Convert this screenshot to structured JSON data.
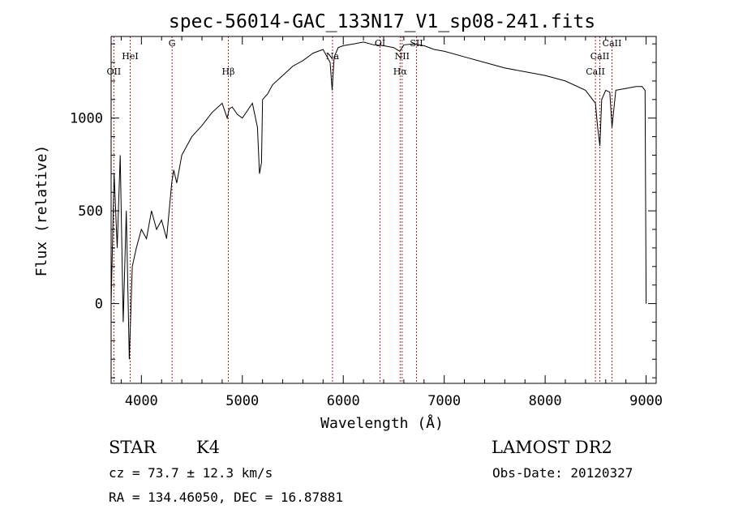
{
  "chart_data": {
    "type": "line",
    "title": "spec-56014-GAC_133N17_V1_sp08-241.fits",
    "xlabel": "Wavelength (Å)",
    "ylabel": "Flux (relative)",
    "xlim": [
      3700,
      9100
    ],
    "ylim": [
      -430,
      1440
    ],
    "x_ticks": [
      4000,
      5000,
      6000,
      7000,
      8000,
      9000
    ],
    "y_ticks": [
      0,
      500,
      1000
    ],
    "x_tick_labels": [
      "4000",
      "5000",
      "6000",
      "7000",
      "8000",
      "9000"
    ],
    "y_tick_labels": [
      "0",
      "500",
      "1000"
    ],
    "grid": false,
    "line_color": "#000000",
    "spectral_line_color": "#b22222",
    "spectrum": {
      "wavelength": [
        3700,
        3730,
        3760,
        3790,
        3820,
        3850,
        3880,
        3910,
        3950,
        4000,
        4050,
        4100,
        4150,
        4200,
        4250,
        4300,
        4320,
        4350,
        4400,
        4450,
        4500,
        4600,
        4700,
        4800,
        4850,
        4870,
        4900,
        4950,
        5000,
        5100,
        5150,
        5170,
        5190,
        5200,
        5250,
        5300,
        5400,
        5500,
        5600,
        5700,
        5800,
        5870,
        5890,
        5910,
        5950,
        6000,
        6100,
        6200,
        6300,
        6400,
        6500,
        6560,
        6600,
        6700,
        6800,
        6900,
        7000,
        7200,
        7400,
        7600,
        7800,
        8000,
        8200,
        8400,
        8498,
        8520,
        8542,
        8560,
        8600,
        8640,
        8662,
        8700,
        8800,
        8900,
        8960,
        8990,
        9000
      ],
      "flux": [
        0,
        700,
        300,
        800,
        -100,
        500,
        -300,
        200,
        300,
        400,
        350,
        500,
        400,
        450,
        350,
        650,
        720,
        650,
        800,
        850,
        900,
        960,
        1030,
        1080,
        1000,
        1050,
        1060,
        1020,
        1000,
        1080,
        950,
        700,
        760,
        1100,
        1130,
        1180,
        1230,
        1280,
        1310,
        1350,
        1370,
        1300,
        1150,
        1330,
        1380,
        1390,
        1400,
        1410,
        1395,
        1390,
        1380,
        1360,
        1395,
        1400,
        1390,
        1370,
        1360,
        1330,
        1300,
        1270,
        1250,
        1230,
        1200,
        1150,
        1080,
        950,
        850,
        1100,
        1150,
        1140,
        950,
        1150,
        1160,
        1170,
        1170,
        1150,
        0
      ]
    },
    "spectral_lines": [
      {
        "label": "OII",
        "wavelength": 3727
      },
      {
        "label": "HeI",
        "wavelength": 3889
      },
      {
        "label": "G",
        "wavelength": 4304
      },
      {
        "label": "Hβ",
        "wavelength": 4861
      },
      {
        "label": "Na",
        "wavelength": 5893
      },
      {
        "label": "OI",
        "wavelength": 6364
      },
      {
        "label": "Hα",
        "wavelength": 6563
      },
      {
        "label": "NII",
        "wavelength": 6583
      },
      {
        "label": "SII",
        "wavelength": 6725
      },
      {
        "label": "CaII",
        "wavelength": 8498
      },
      {
        "label": "CaII",
        "wavelength": 8542
      },
      {
        "label": "CaII",
        "wavelength": 8662
      }
    ]
  },
  "info": {
    "class_label": "STAR",
    "subclass": "K4",
    "cz_text": "cz = 73.7 ± 12.3 km/s",
    "coords_text": "RA = 134.46050, DEC =  16.87881",
    "survey": "LAMOST DR2",
    "obs_date_text": "Obs-Date: 20120327"
  }
}
